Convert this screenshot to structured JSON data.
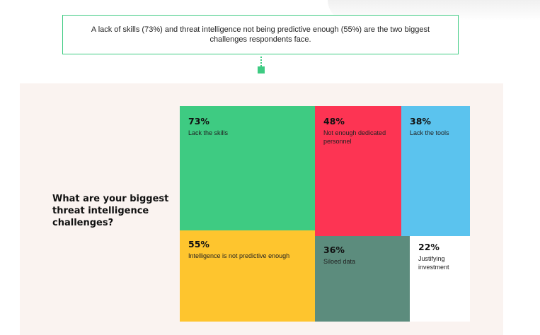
{
  "callout": {
    "text": "A lack of skills (73%) and threat intelligence not being predictive enough (55%) are the two biggest challenges respondents face."
  },
  "question": "What are your biggest threat intelligence challenges?",
  "chart_data": {
    "type": "treemap",
    "title": "What are your biggest threat intelligence challenges?",
    "unit": "%",
    "items": [
      {
        "label": "Lack the skills",
        "value": 73,
        "display": "73%",
        "color": "#3ecb82"
      },
      {
        "label": "Not enough dedicated personnel",
        "value": 48,
        "display": "48%",
        "color": "#fd3453"
      },
      {
        "label": "Lack the tools",
        "value": 38,
        "display": "38%",
        "color": "#5bc3ee"
      },
      {
        "label": "Intelligence is not predictive enough",
        "value": 55,
        "display": "55%",
        "color": "#fec52e"
      },
      {
        "label": "Siloed data",
        "value": 36,
        "display": "36%",
        "color": "#5c8c7d"
      },
      {
        "label": "Justifying investment",
        "value": 22,
        "display": "22%",
        "color": "#ffffff"
      }
    ]
  }
}
